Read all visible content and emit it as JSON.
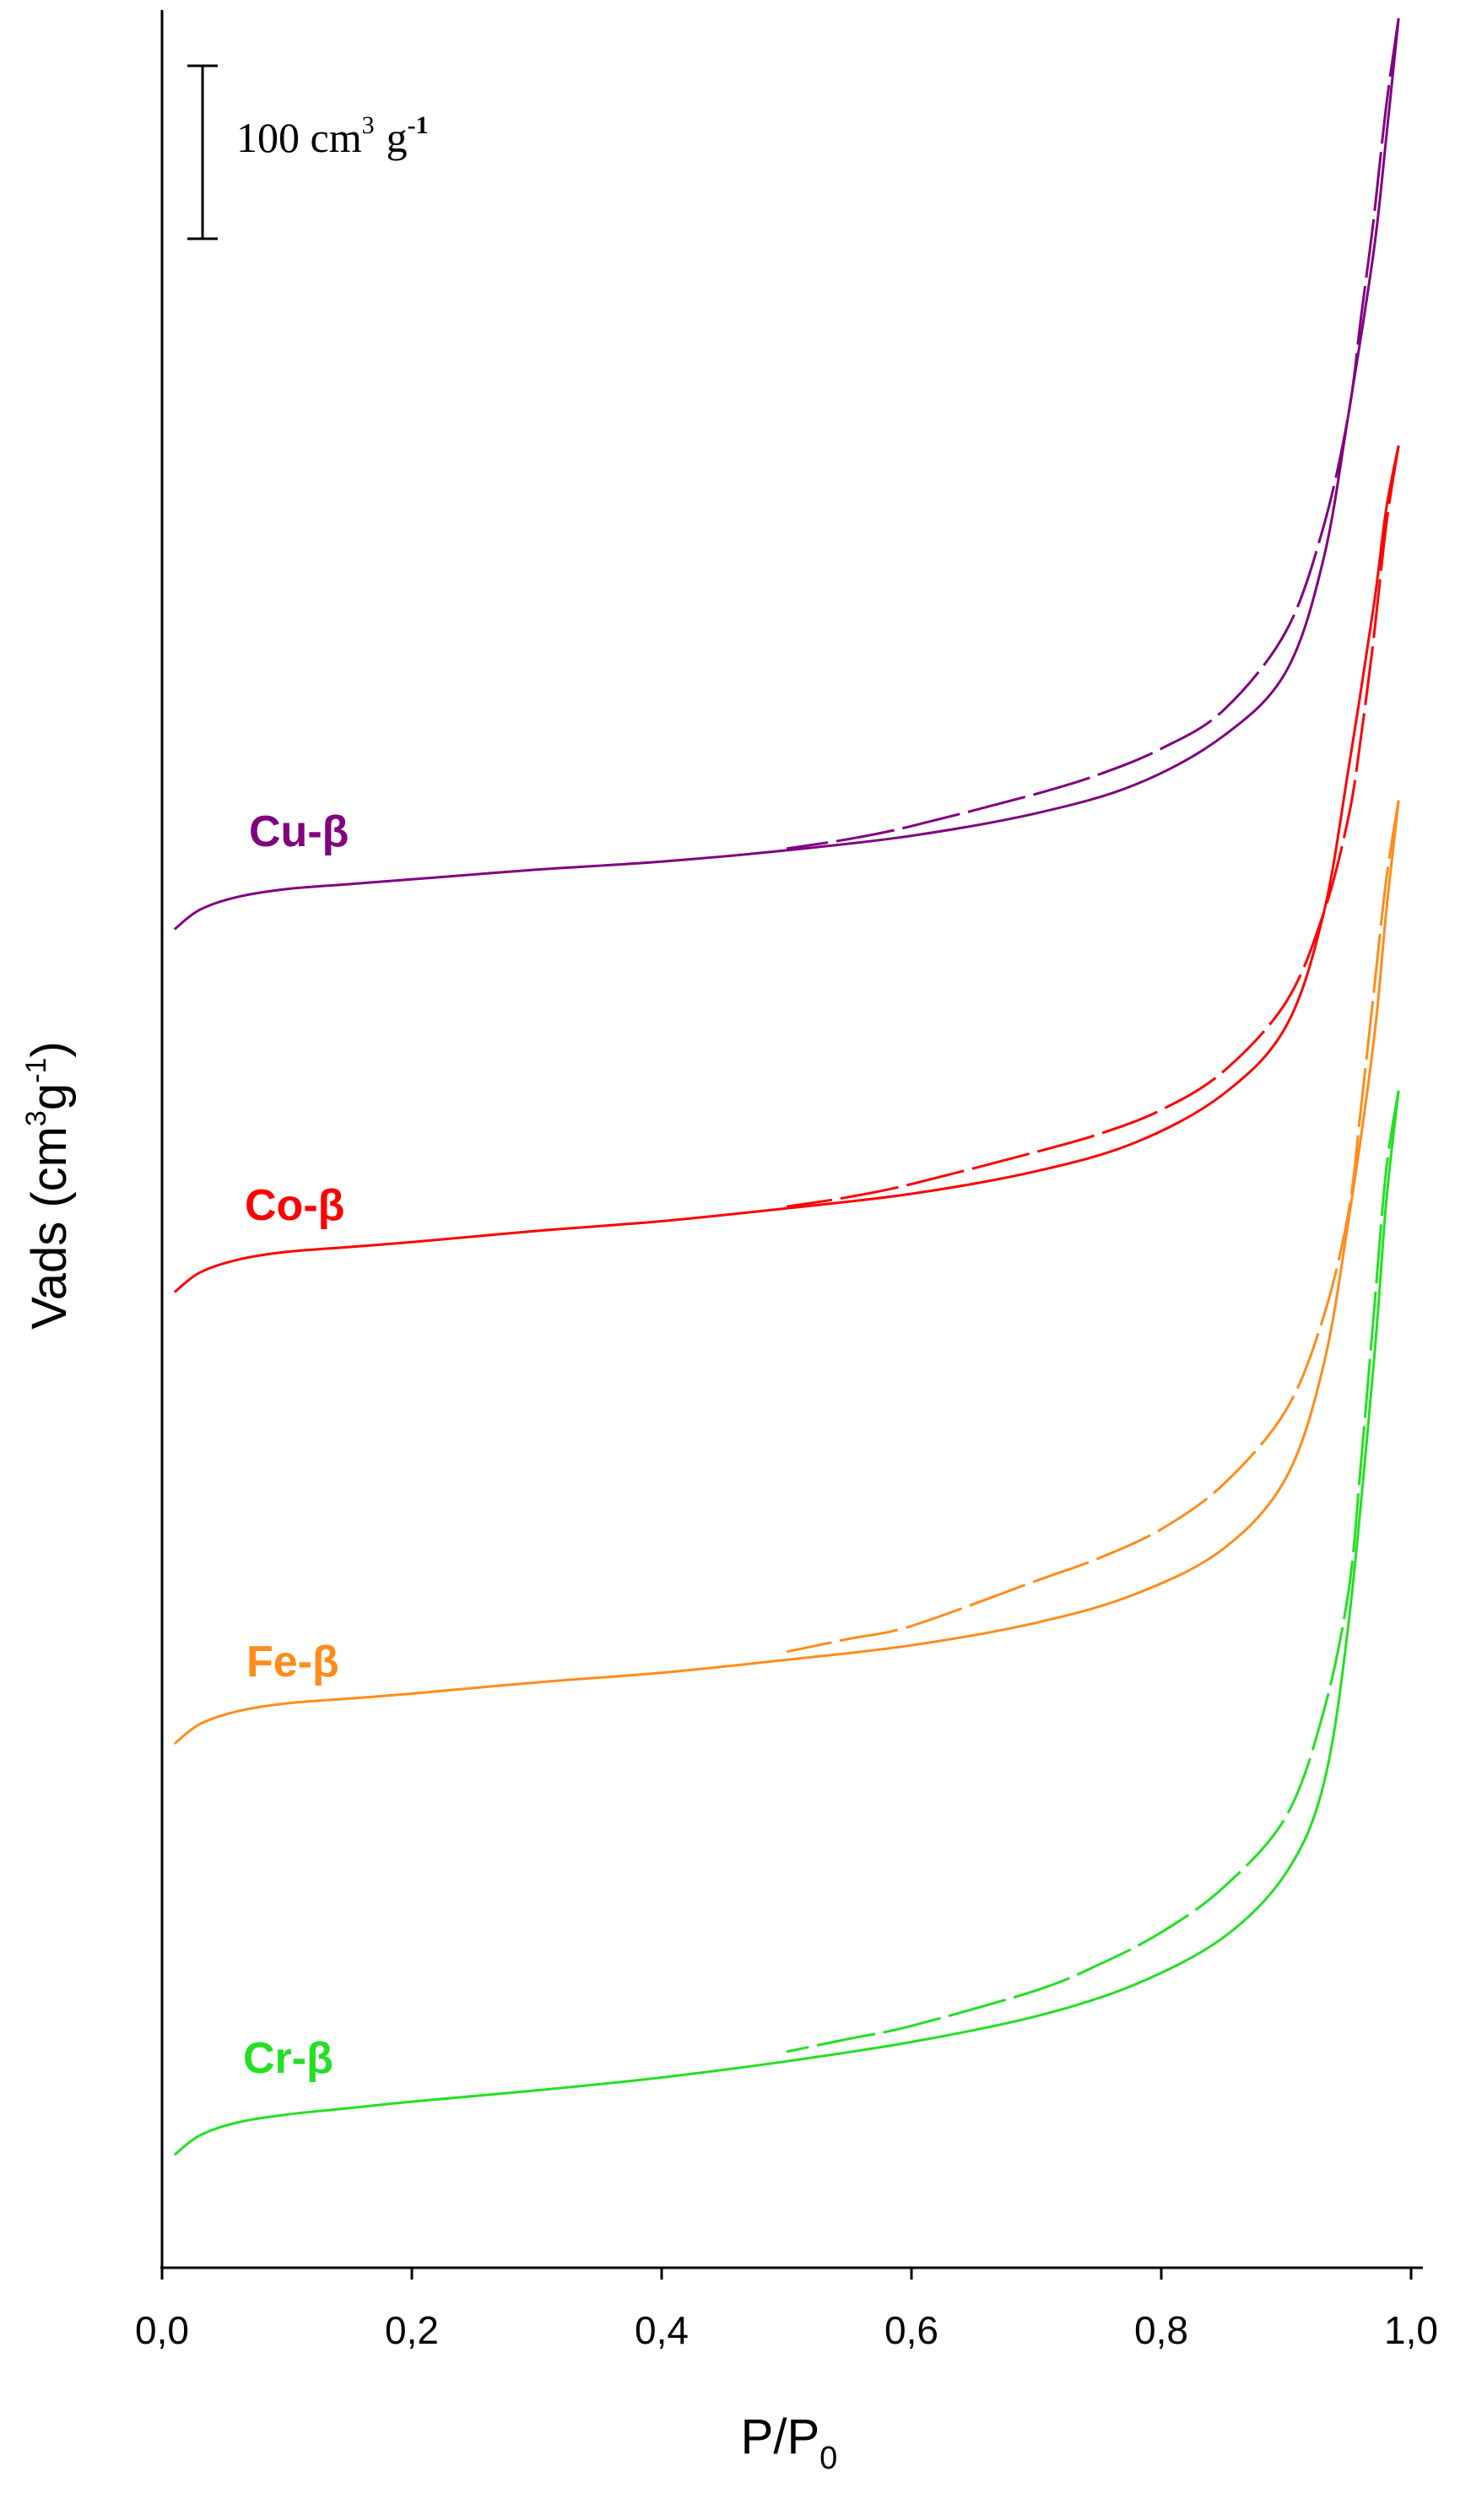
{
  "chart_data": {
    "type": "line",
    "title": "",
    "xlabel": "P/P",
    "xlabel_sub": "0",
    "ylabel": "Vads (cm",
    "ylabel_sup": "-1",
    "ylabel_unit": "g",
    "ylabel_close": ")",
    "ylabel_sup3": "3",
    "xlim": [
      0.0,
      1.0
    ],
    "ylim": [
      0,
      1400
    ],
    "xticks": [
      "0,0",
      "0,2",
      "0,4",
      "0,6",
      "0,8",
      "1,0"
    ],
    "xtick_values": [
      0.0,
      0.2,
      0.4,
      0.6,
      0.8,
      1.0
    ],
    "y_ticks_shown": false,
    "scale_bar": {
      "value": 100,
      "label": "100 cm",
      "label_sup": "3",
      "label_unit": "g",
      "label_sup2": "-1"
    },
    "series": [
      {
        "name": "Cu-β",
        "color": "#800080",
        "adsorption": {
          "x": [
            0.01,
            0.03,
            0.06,
            0.1,
            0.15,
            0.2,
            0.3,
            0.4,
            0.5,
            0.6,
            0.7,
            0.78,
            0.85,
            0.9,
            0.93,
            0.95,
            0.97,
            0.98,
            0.99
          ],
          "y": [
            830,
            842,
            850,
            855,
            858,
            861,
            867,
            872,
            879,
            888,
            902,
            920,
            950,
            990,
            1060,
            1150,
            1250,
            1320,
            1395
          ]
        },
        "desorption": {
          "x": [
            0.99,
            0.98,
            0.97,
            0.96,
            0.95,
            0.93,
            0.9,
            0.85,
            0.8,
            0.75,
            0.7,
            0.6,
            0.55,
            0.5
          ],
          "y": [
            1395,
            1340,
            1270,
            1210,
            1150,
            1080,
            1015,
            966,
            942,
            926,
            914,
            894,
            886,
            880
          ]
        }
      },
      {
        "name": "Co-β",
        "color": "#ff0000",
        "adsorption": {
          "x": [
            0.01,
            0.03,
            0.06,
            0.1,
            0.15,
            0.2,
            0.3,
            0.4,
            0.5,
            0.6,
            0.7,
            0.78,
            0.85,
            0.9,
            0.93,
            0.95,
            0.97,
            0.98,
            0.99
          ],
          "y": [
            605,
            617,
            625,
            630,
            633,
            636,
            643,
            649,
            657,
            666,
            680,
            698,
            728,
            770,
            840,
            930,
            1030,
            1090,
            1130
          ]
        },
        "desorption": {
          "x": [
            0.99,
            0.98,
            0.97,
            0.96,
            0.95,
            0.93,
            0.9,
            0.85,
            0.8,
            0.75,
            0.7,
            0.6,
            0.55,
            0.5
          ],
          "y": [
            1130,
            1080,
            1010,
            950,
            900,
            840,
            785,
            742,
            718,
            703,
            692,
            672,
            664,
            658
          ]
        }
      },
      {
        "name": "Fe-β",
        "color": "#ff8c1a",
        "adsorption": {
          "x": [
            0.01,
            0.03,
            0.06,
            0.1,
            0.15,
            0.2,
            0.3,
            0.4,
            0.5,
            0.6,
            0.7,
            0.78,
            0.85,
            0.9,
            0.93,
            0.95,
            0.97,
            0.98,
            0.99
          ],
          "y": [
            325,
            337,
            345,
            350,
            353,
            356,
            363,
            369,
            377,
            386,
            400,
            418,
            446,
            490,
            560,
            650,
            760,
            840,
            910
          ]
        },
        "desorption": {
          "x": [
            0.99,
            0.98,
            0.97,
            0.96,
            0.95,
            0.93,
            0.9,
            0.85,
            0.8,
            0.75,
            0.7,
            0.6,
            0.55,
            0.5
          ],
          "y": [
            910,
            860,
            790,
            720,
            655,
            590,
            532,
            486,
            458,
            440,
            426,
            398,
            390,
            382
          ]
        }
      },
      {
        "name": "Cr-β",
        "color": "#22e022",
        "adsorption": {
          "x": [
            0.01,
            0.03,
            0.06,
            0.1,
            0.15,
            0.2,
            0.3,
            0.4,
            0.5,
            0.6,
            0.7,
            0.78,
            0.85,
            0.9,
            0.93,
            0.95,
            0.97,
            0.98,
            0.99
          ],
          "y": [
            70,
            82,
            90,
            95,
            99,
            103,
            110,
            118,
            128,
            140,
            156,
            176,
            205,
            245,
            300,
            400,
            560,
            660,
            730
          ]
        },
        "desorption": {
          "x": [
            0.99,
            0.98,
            0.97,
            0.96,
            0.95,
            0.93,
            0.9,
            0.85,
            0.8,
            0.75,
            0.7,
            0.6,
            0.55,
            0.5
          ],
          "y": [
            730,
            680,
            590,
            500,
            420,
            345,
            280,
            236,
            208,
            188,
            172,
            150,
            142,
            134
          ]
        }
      }
    ]
  }
}
